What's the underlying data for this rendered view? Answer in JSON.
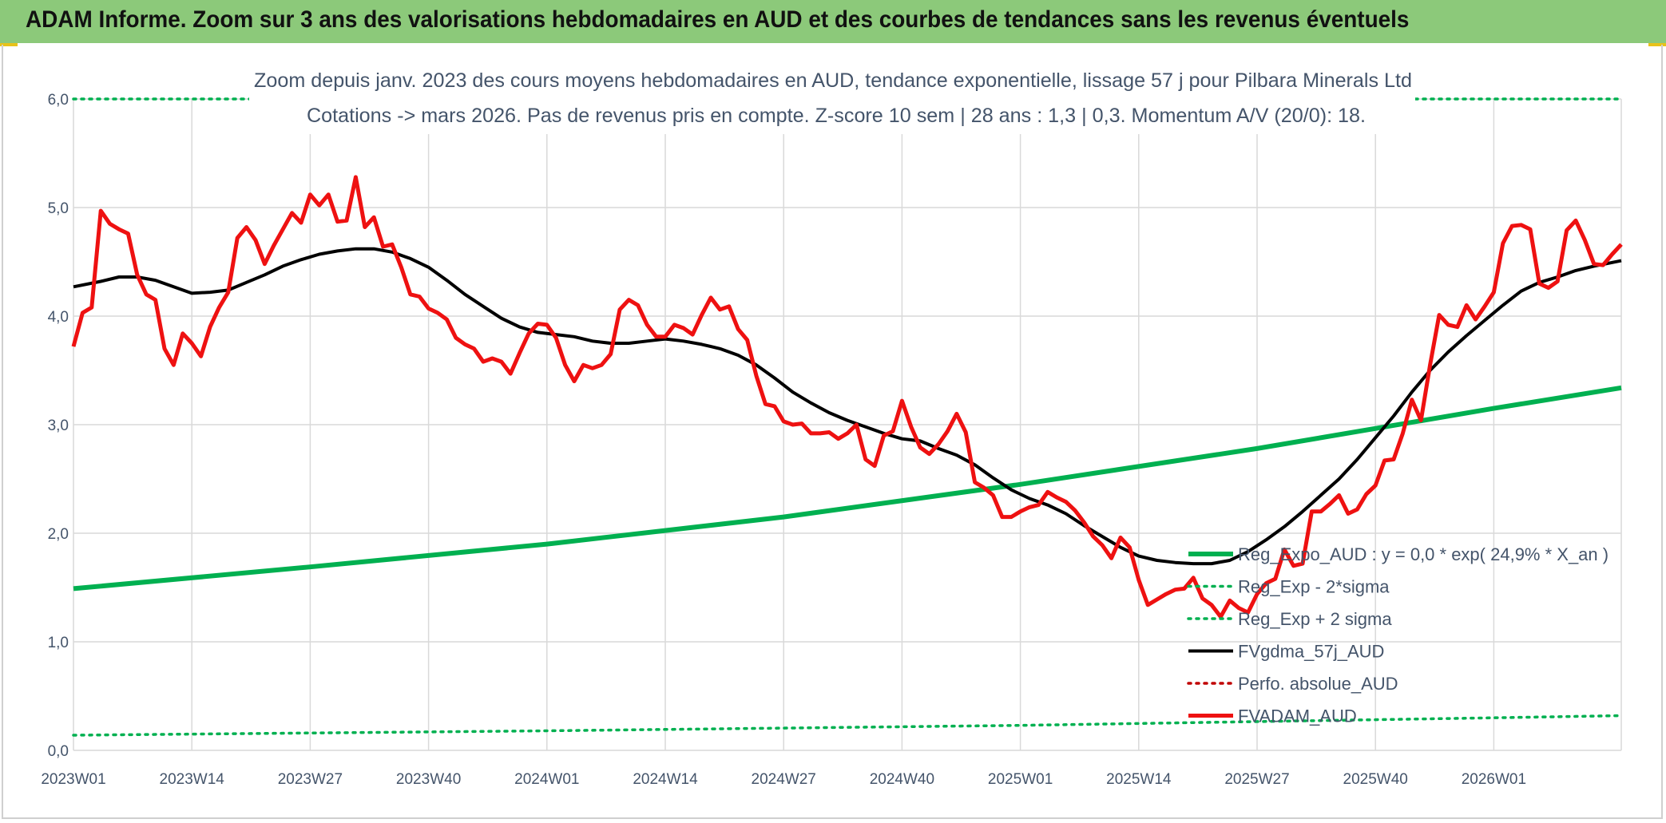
{
  "header": {
    "title": "ADAM Informe. Zoom sur 3 ans des valorisations hebdomadaires en AUD et des courbes de tendances sans les revenus éventuels"
  },
  "colors": {
    "header_bg": "#8cc97a",
    "reg_expo": "#00b050",
    "fvgdma": "#000000",
    "perfo": "#c00000",
    "fvadam": "#ee1111",
    "grid": "#d9d9d9",
    "text": "#44546a"
  },
  "chart_data": {
    "type": "line",
    "subtitle_line1": "Zoom depuis janv. 2023 des cours moyens hebdomadaires en AUD, tendance exponentielle, lissage 57 j pour Pilbara Minerals Ltd",
    "subtitle_line2": "Cotations -> mars 2026. Pas de revenus pris en compte. Z-score 10 sem | 28 ans : 1,3 | 0,3. Momentum A/V (20/0): 18.",
    "x_ticks": [
      "2023W01",
      "2023W14",
      "2023W27",
      "2023W40",
      "2024W01",
      "2024W14",
      "2024W27",
      "2024W40",
      "2025W01",
      "2025W14",
      "2025W27",
      "2025W40",
      "2026W01"
    ],
    "x_tick_positions": [
      0,
      13,
      26,
      39,
      52,
      65,
      78,
      91,
      104,
      117,
      130,
      143,
      156
    ],
    "x_range": [
      0,
      170
    ],
    "y_ticks": [
      "0,0",
      "1,0",
      "2,0",
      "3,0",
      "4,0",
      "5,0",
      "6,0"
    ],
    "ylim": [
      0,
      6
    ],
    "grid": true,
    "legend_position": "bottom-right",
    "series": [
      {
        "name": "Reg_Expo_AUD : y = 0,0 * exp( 24,9% *  X_an )",
        "style": "solid-thick",
        "color": "#00b050",
        "points": [
          [
            0,
            1.49
          ],
          [
            26,
            1.69
          ],
          [
            52,
            1.9
          ],
          [
            78,
            2.15
          ],
          [
            104,
            2.45
          ],
          [
            130,
            2.78
          ],
          [
            156,
            3.15
          ],
          [
            170,
            3.34
          ]
        ]
      },
      {
        "name": "Reg_Exp - 2*sigma",
        "style": "dotted",
        "color": "#00b050",
        "points": [
          [
            0,
            0.14
          ],
          [
            52,
            0.18
          ],
          [
            104,
            0.23
          ],
          [
            156,
            0.3
          ],
          [
            170,
            0.32
          ]
        ]
      },
      {
        "name": "Reg_Exp + 2 sigma",
        "style": "dotted",
        "color": "#00b050",
        "points": [
          [
            0,
            6.0
          ],
          [
            170,
            6.0
          ]
        ]
      },
      {
        "name": "FVgdma_57j_AUD",
        "style": "solid",
        "color": "#000000",
        "points": [
          [
            0,
            4.27
          ],
          [
            3,
            4.32
          ],
          [
            5,
            4.36
          ],
          [
            7,
            4.36
          ],
          [
            9,
            4.33
          ],
          [
            11,
            4.27
          ],
          [
            13,
            4.21
          ],
          [
            15,
            4.22
          ],
          [
            17,
            4.24
          ],
          [
            19,
            4.31
          ],
          [
            21,
            4.38
          ],
          [
            23,
            4.46
          ],
          [
            25,
            4.52
          ],
          [
            27,
            4.57
          ],
          [
            29,
            4.6
          ],
          [
            31,
            4.62
          ],
          [
            33,
            4.62
          ],
          [
            35,
            4.59
          ],
          [
            37,
            4.53
          ],
          [
            39,
            4.45
          ],
          [
            41,
            4.33
          ],
          [
            43,
            4.2
          ],
          [
            45,
            4.09
          ],
          [
            47,
            3.98
          ],
          [
            49,
            3.9
          ],
          [
            51,
            3.85
          ],
          [
            53,
            3.83
          ],
          [
            55,
            3.81
          ],
          [
            57,
            3.77
          ],
          [
            59,
            3.75
          ],
          [
            61,
            3.75
          ],
          [
            63,
            3.77
          ],
          [
            65,
            3.79
          ],
          [
            67,
            3.77
          ],
          [
            69,
            3.74
          ],
          [
            71,
            3.7
          ],
          [
            73,
            3.64
          ],
          [
            75,
            3.55
          ],
          [
            77,
            3.43
          ],
          [
            79,
            3.3
          ],
          [
            81,
            3.2
          ],
          [
            83,
            3.11
          ],
          [
            85,
            3.04
          ],
          [
            87,
            2.98
          ],
          [
            89,
            2.92
          ],
          [
            91,
            2.87
          ],
          [
            93,
            2.85
          ],
          [
            95,
            2.78
          ],
          [
            97,
            2.72
          ],
          [
            99,
            2.63
          ],
          [
            101,
            2.51
          ],
          [
            103,
            2.4
          ],
          [
            105,
            2.32
          ],
          [
            107,
            2.26
          ],
          [
            109,
            2.18
          ],
          [
            111,
            2.07
          ],
          [
            113,
            1.97
          ],
          [
            115,
            1.87
          ],
          [
            117,
            1.79
          ],
          [
            119,
            1.75
          ],
          [
            121,
            1.73
          ],
          [
            123,
            1.72
          ],
          [
            125,
            1.72
          ],
          [
            127,
            1.75
          ],
          [
            129,
            1.83
          ],
          [
            131,
            1.94
          ],
          [
            133,
            2.06
          ],
          [
            135,
            2.2
          ],
          [
            137,
            2.35
          ],
          [
            139,
            2.5
          ],
          [
            141,
            2.68
          ],
          [
            143,
            2.88
          ],
          [
            145,
            3.08
          ],
          [
            147,
            3.3
          ],
          [
            149,
            3.5
          ],
          [
            151,
            3.67
          ],
          [
            153,
            3.82
          ],
          [
            155,
            3.96
          ],
          [
            157,
            4.1
          ],
          [
            159,
            4.23
          ],
          [
            161,
            4.31
          ],
          [
            163,
            4.36
          ],
          [
            165,
            4.42
          ],
          [
            167,
            4.46
          ],
          [
            170,
            4.51
          ]
        ]
      },
      {
        "name": "Perfo. absolue_AUD",
        "style": "dotted",
        "color": "#c00000",
        "points": []
      },
      {
        "name": "FVADAM_AUD",
        "style": "solid-thick",
        "color": "#ee1111",
        "points": [
          [
            0,
            3.72
          ],
          [
            1,
            4.03
          ],
          [
            2,
            4.08
          ],
          [
            3,
            4.97
          ],
          [
            4,
            4.85
          ],
          [
            5,
            4.8
          ],
          [
            6,
            4.76
          ],
          [
            7,
            4.38
          ],
          [
            8,
            4.2
          ],
          [
            9,
            4.15
          ],
          [
            10,
            3.7
          ],
          [
            11,
            3.55
          ],
          [
            12,
            3.84
          ],
          [
            13,
            3.75
          ],
          [
            14,
            3.63
          ],
          [
            15,
            3.9
          ],
          [
            16,
            4.08
          ],
          [
            17,
            4.22
          ],
          [
            18,
            4.72
          ],
          [
            19,
            4.82
          ],
          [
            20,
            4.7
          ],
          [
            21,
            4.48
          ],
          [
            22,
            4.65
          ],
          [
            23,
            4.8
          ],
          [
            24,
            4.95
          ],
          [
            25,
            4.86
          ],
          [
            26,
            5.12
          ],
          [
            27,
            5.02
          ],
          [
            28,
            5.12
          ],
          [
            29,
            4.87
          ],
          [
            30,
            4.88
          ],
          [
            31,
            5.28
          ],
          [
            32,
            4.82
          ],
          [
            33,
            4.91
          ],
          [
            34,
            4.64
          ],
          [
            35,
            4.66
          ],
          [
            36,
            4.45
          ],
          [
            37,
            4.2
          ],
          [
            38,
            4.18
          ],
          [
            39,
            4.07
          ],
          [
            40,
            4.03
          ],
          [
            41,
            3.97
          ],
          [
            42,
            3.8
          ],
          [
            43,
            3.74
          ],
          [
            44,
            3.7
          ],
          [
            45,
            3.58
          ],
          [
            46,
            3.61
          ],
          [
            47,
            3.58
          ],
          [
            48,
            3.47
          ],
          [
            49,
            3.66
          ],
          [
            50,
            3.84
          ],
          [
            51,
            3.93
          ],
          [
            52,
            3.92
          ],
          [
            53,
            3.8
          ],
          [
            54,
            3.55
          ],
          [
            55,
            3.4
          ],
          [
            56,
            3.55
          ],
          [
            57,
            3.52
          ],
          [
            58,
            3.55
          ],
          [
            59,
            3.65
          ],
          [
            60,
            4.06
          ],
          [
            61,
            4.15
          ],
          [
            62,
            4.1
          ],
          [
            63,
            3.92
          ],
          [
            64,
            3.81
          ],
          [
            65,
            3.81
          ],
          [
            66,
            3.92
          ],
          [
            67,
            3.89
          ],
          [
            68,
            3.83
          ],
          [
            69,
            4.01
          ],
          [
            70,
            4.17
          ],
          [
            71,
            4.06
          ],
          [
            72,
            4.09
          ],
          [
            73,
            3.88
          ],
          [
            74,
            3.78
          ],
          [
            75,
            3.45
          ],
          [
            76,
            3.19
          ],
          [
            77,
            3.17
          ],
          [
            78,
            3.03
          ],
          [
            79,
            3.0
          ],
          [
            80,
            3.01
          ],
          [
            81,
            2.92
          ],
          [
            82,
            2.92
          ],
          [
            83,
            2.93
          ],
          [
            84,
            2.87
          ],
          [
            85,
            2.92
          ],
          [
            86,
            3.0
          ],
          [
            87,
            2.68
          ],
          [
            88,
            2.62
          ],
          [
            89,
            2.9
          ],
          [
            90,
            2.94
          ],
          [
            91,
            3.22
          ],
          [
            92,
            2.98
          ],
          [
            93,
            2.79
          ],
          [
            94,
            2.73
          ],
          [
            95,
            2.82
          ],
          [
            96,
            2.94
          ],
          [
            97,
            3.1
          ],
          [
            98,
            2.93
          ],
          [
            99,
            2.47
          ],
          [
            100,
            2.42
          ],
          [
            101,
            2.35
          ],
          [
            102,
            2.15
          ],
          [
            103,
            2.15
          ],
          [
            104,
            2.2
          ],
          [
            105,
            2.24
          ],
          [
            106,
            2.26
          ],
          [
            107,
            2.38
          ],
          [
            108,
            2.33
          ],
          [
            109,
            2.29
          ],
          [
            110,
            2.21
          ],
          [
            111,
            2.1
          ],
          [
            112,
            1.97
          ],
          [
            113,
            1.89
          ],
          [
            114,
            1.77
          ],
          [
            115,
            1.96
          ],
          [
            116,
            1.87
          ],
          [
            117,
            1.57
          ],
          [
            118,
            1.34
          ],
          [
            119,
            1.39
          ],
          [
            120,
            1.44
          ],
          [
            121,
            1.48
          ],
          [
            122,
            1.49
          ],
          [
            123,
            1.59
          ],
          [
            124,
            1.4
          ],
          [
            125,
            1.34
          ],
          [
            126,
            1.23
          ],
          [
            127,
            1.38
          ],
          [
            128,
            1.31
          ],
          [
            129,
            1.27
          ],
          [
            130,
            1.44
          ],
          [
            131,
            1.54
          ],
          [
            132,
            1.58
          ],
          [
            133,
            1.85
          ],
          [
            134,
            1.7
          ],
          [
            135,
            1.72
          ],
          [
            136,
            2.2
          ],
          [
            137,
            2.2
          ],
          [
            138,
            2.27
          ],
          [
            139,
            2.35
          ],
          [
            140,
            2.18
          ],
          [
            141,
            2.22
          ],
          [
            142,
            2.36
          ],
          [
            143,
            2.44
          ],
          [
            144,
            2.67
          ],
          [
            145,
            2.68
          ],
          [
            146,
            2.92
          ],
          [
            147,
            3.23
          ],
          [
            148,
            3.04
          ],
          [
            149,
            3.55
          ],
          [
            150,
            4.01
          ],
          [
            151,
            3.92
          ],
          [
            152,
            3.9
          ],
          [
            153,
            4.1
          ],
          [
            154,
            3.97
          ],
          [
            155,
            4.09
          ],
          [
            156,
            4.22
          ],
          [
            157,
            4.67
          ],
          [
            158,
            4.83
          ],
          [
            159,
            4.84
          ],
          [
            160,
            4.8
          ],
          [
            161,
            4.3
          ],
          [
            162,
            4.26
          ],
          [
            163,
            4.32
          ],
          [
            164,
            4.79
          ],
          [
            165,
            4.88
          ],
          [
            166,
            4.7
          ],
          [
            167,
            4.48
          ],
          [
            168,
            4.47
          ],
          [
            169,
            4.57
          ],
          [
            170,
            4.66
          ]
        ]
      }
    ]
  }
}
